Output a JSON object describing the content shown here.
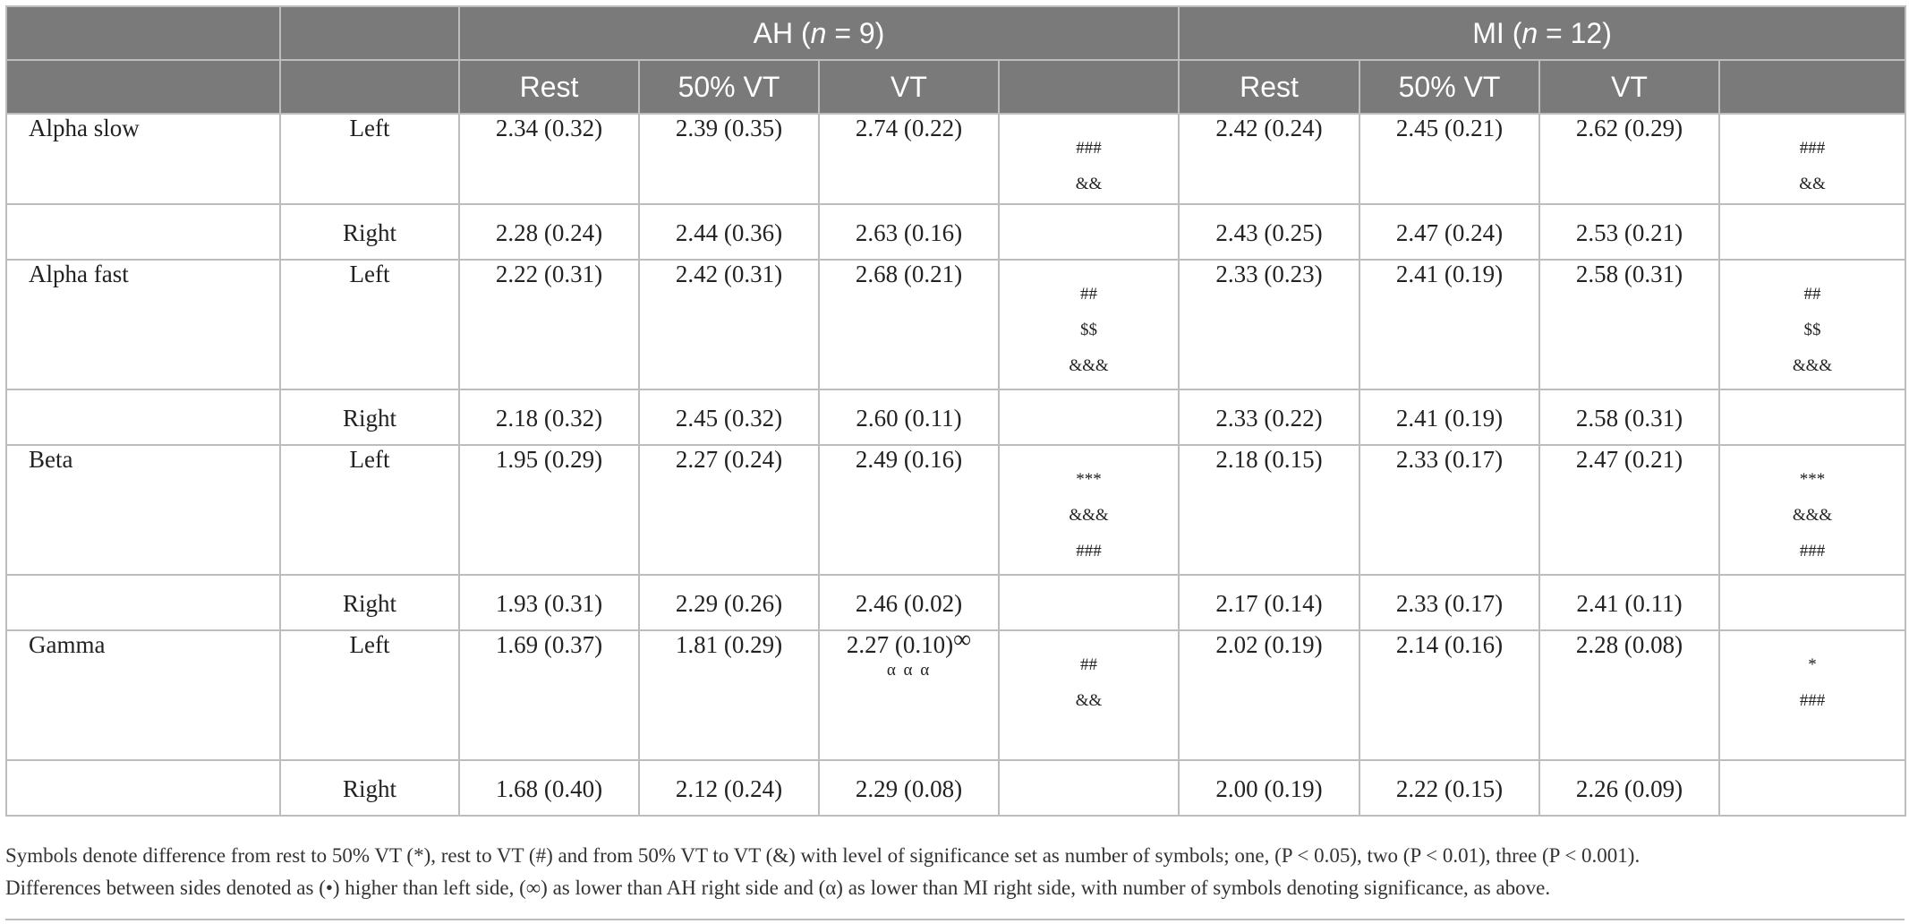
{
  "header": {
    "ah_label_prefix": "AH (",
    "ah_n": "n",
    "ah_label_suffix": " = 9)",
    "mi_label_prefix": "MI (",
    "mi_n": "n",
    "mi_label_suffix": " = 12)",
    "columns": [
      "Rest",
      "50% VT",
      "VT",
      "Rest",
      "50% VT",
      "VT"
    ]
  },
  "rows": [
    {
      "band": "Alpha slow",
      "side": "Left",
      "ah": [
        "2.34 (0.32)",
        "2.39 (0.35)",
        "2.74 (0.22)"
      ],
      "ah_sym": [
        "###",
        "&&"
      ],
      "mi": [
        "2.42 (0.24)",
        "2.45 (0.21)",
        "2.62 (0.29)"
      ],
      "mi_sym": [
        "###",
        "&&"
      ]
    },
    {
      "band": "",
      "side": "Right",
      "ah": [
        "2.28 (0.24)",
        "2.44 (0.36)",
        "2.63 (0.16)"
      ],
      "ah_sym": [],
      "mi": [
        "2.43 (0.25)",
        "2.47 (0.24)",
        "2.53 (0.21)"
      ],
      "mi_sym": []
    },
    {
      "band": "Alpha fast",
      "side": "Left",
      "ah": [
        "2.22 (0.31)",
        "2.42 (0.31)",
        "2.68 (0.21)"
      ],
      "ah_sym": [
        "##",
        "$$",
        "&&&"
      ],
      "mi": [
        "2.33 (0.23)",
        "2.41 (0.19)",
        "2.58 (0.31)"
      ],
      "mi_sym": [
        "##",
        "$$",
        "&&&"
      ]
    },
    {
      "band": "",
      "side": "Right",
      "ah": [
        "2.18 (0.32)",
        "2.45 (0.32)",
        "2.60 (0.11)"
      ],
      "ah_sym": [],
      "mi": [
        "2.33 (0.22)",
        "2.41 (0.19)",
        "2.58 (0.31)"
      ],
      "mi_sym": []
    },
    {
      "band": "Beta",
      "side": "Left",
      "ah": [
        "1.95 (0.29)",
        "2.27 (0.24)",
        "2.49 (0.16)"
      ],
      "ah_sym": [
        "***",
        "&&&",
        "###"
      ],
      "mi": [
        "2.18 (0.15)",
        "2.33 (0.17)",
        "2.47 (0.21)"
      ],
      "mi_sym": [
        "***",
        "&&&",
        "###"
      ]
    },
    {
      "band": "",
      "side": "Right",
      "ah": [
        "1.93 (0.31)",
        "2.29 (0.26)",
        "2.46 (0.02)"
      ],
      "ah_sym": [],
      "mi": [
        "2.17 (0.14)",
        "2.33 (0.17)",
        "2.41 (0.11)"
      ],
      "mi_sym": []
    },
    {
      "band": "Gamma",
      "side": "Left",
      "ah": [
        "1.69 (0.37)",
        "1.81 (0.29)",
        "2.27 (0.10)"
      ],
      "ah_sym": [
        "##",
        "&&"
      ],
      "ah_vt_sup": "∞",
      "ah_vt_note": "α α α",
      "mi": [
        "2.02 (0.19)",
        "2.14 (0.16)",
        "2.28 (0.08)"
      ],
      "mi_sym": [
        "*",
        "###"
      ]
    },
    {
      "band": "",
      "side": "Right",
      "ah": [
        "1.68 (0.40)",
        "2.12 (0.24)",
        "2.29 (0.08)"
      ],
      "ah_sym": [],
      "mi": [
        "2.00 (0.19)",
        "2.22 (0.15)",
        "2.26 (0.09)"
      ],
      "mi_sym": []
    }
  ],
  "footnote": {
    "line1": "Symbols denote difference from rest to 50% VT (*), rest to VT (#) and from 50% VT to VT (&) with level of significance set as number of symbols; one, (P < 0.05), two (P < 0.01), three (P < 0.001).",
    "line2": "Differences between sides denoted as (•) higher than left side, (∞) as lower than AH right side and (α) as lower than MI right side, with number of symbols denoting significance, as above."
  }
}
